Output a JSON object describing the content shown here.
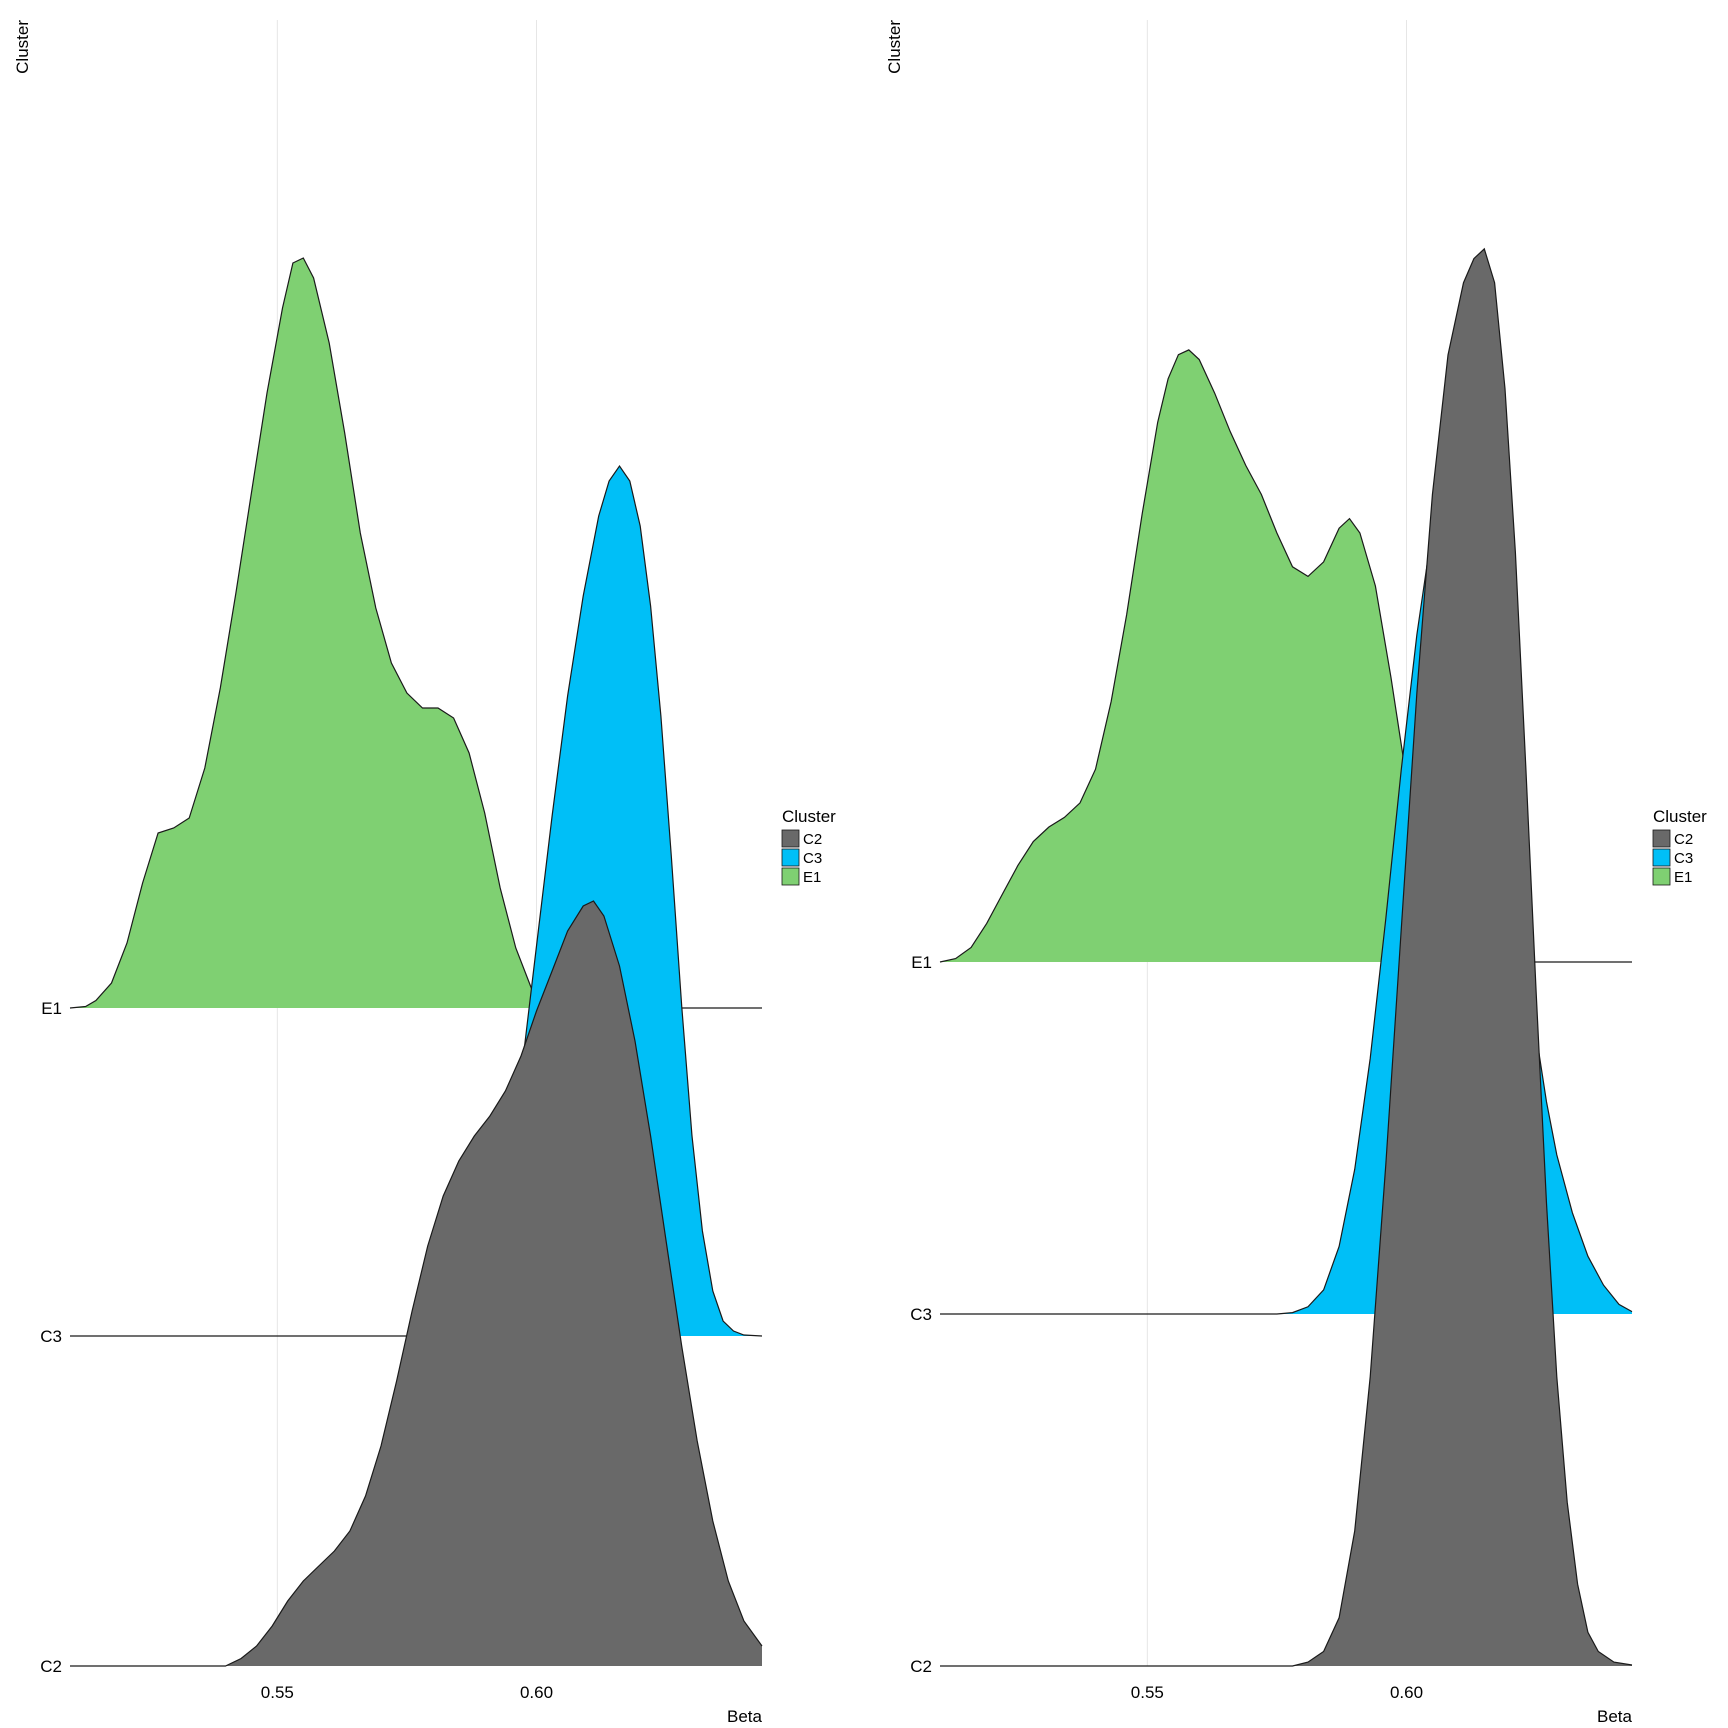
{
  "colors": {
    "C2": "#696969",
    "C3": "#00BFF7",
    "E1": "#7FD072",
    "outline": "#1a1a1a",
    "grid": "#e6e6e6"
  },
  "chart_data": [
    {
      "type": "area",
      "subtype": "ridgeline-density",
      "xlabel": "Beta",
      "ylabel": "Cluster",
      "xlim": [
        0.51,
        0.6435
      ],
      "xticks": [
        0.55,
        0.6
      ],
      "xtick_labels": [
        "0.55",
        "0.60"
      ],
      "grid": "vertical major lines at x ticks",
      "categories": [
        "C2",
        "C3",
        "E1"
      ],
      "legend": {
        "title": "Cluster",
        "position": "right",
        "entries": [
          "C2",
          "C3",
          "E1"
        ]
      },
      "series": [
        {
          "name": "E1",
          "points": [
            [
              0.51,
              0
            ],
            [
              0.513,
              0.3
            ],
            [
              0.515,
              1.5
            ],
            [
              0.518,
              5
            ],
            [
              0.521,
              13
            ],
            [
              0.524,
              25
            ],
            [
              0.527,
              35
            ],
            [
              0.53,
              36
            ],
            [
              0.533,
              38
            ],
            [
              0.536,
              48
            ],
            [
              0.539,
              64
            ],
            [
              0.542,
              83
            ],
            [
              0.545,
              103
            ],
            [
              0.548,
              123
            ],
            [
              0.551,
              140
            ],
            [
              0.553,
              149
            ],
            [
              0.555,
              150
            ],
            [
              0.557,
              146
            ],
            [
              0.56,
              133
            ],
            [
              0.563,
              115
            ],
            [
              0.566,
              95
            ],
            [
              0.569,
              80
            ],
            [
              0.572,
              69
            ],
            [
              0.575,
              63
            ],
            [
              0.578,
              60
            ],
            [
              0.581,
              60
            ],
            [
              0.584,
              58
            ],
            [
              0.587,
              51
            ],
            [
              0.59,
              39
            ],
            [
              0.593,
              24
            ],
            [
              0.596,
              12
            ],
            [
              0.599,
              4
            ],
            [
              0.602,
              1
            ],
            [
              0.605,
              0.2
            ],
            [
              0.608,
              0
            ],
            [
              0.6435,
              0
            ]
          ]
        },
        {
          "name": "C3",
          "points": [
            [
              0.51,
              0
            ],
            [
              0.575,
              0
            ],
            [
              0.58,
              0.2
            ],
            [
              0.585,
              1.5
            ],
            [
              0.588,
              5
            ],
            [
              0.591,
              14
            ],
            [
              0.594,
              30
            ],
            [
              0.597,
              52
            ],
            [
              0.6,
              78
            ],
            [
              0.603,
              104
            ],
            [
              0.606,
              128
            ],
            [
              0.609,
              148
            ],
            [
              0.612,
              164
            ],
            [
              0.614,
              171
            ],
            [
              0.616,
              174
            ],
            [
              0.618,
              171
            ],
            [
              0.62,
              162
            ],
            [
              0.622,
              146
            ],
            [
              0.624,
              124
            ],
            [
              0.626,
              96
            ],
            [
              0.628,
              66
            ],
            [
              0.63,
              40
            ],
            [
              0.632,
              21
            ],
            [
              0.634,
              9
            ],
            [
              0.636,
              3
            ],
            [
              0.638,
              1
            ],
            [
              0.64,
              0.2
            ],
            [
              0.6435,
              0
            ]
          ]
        },
        {
          "name": "C2",
          "points": [
            [
              0.51,
              0
            ],
            [
              0.54,
              0
            ],
            [
              0.543,
              1.5
            ],
            [
              0.546,
              4
            ],
            [
              0.549,
              8
            ],
            [
              0.552,
              13
            ],
            [
              0.555,
              17
            ],
            [
              0.558,
              20
            ],
            [
              0.561,
              23
            ],
            [
              0.564,
              27
            ],
            [
              0.567,
              34
            ],
            [
              0.57,
              44
            ],
            [
              0.573,
              57
            ],
            [
              0.576,
              71
            ],
            [
              0.579,
              84
            ],
            [
              0.582,
              94
            ],
            [
              0.585,
              101
            ],
            [
              0.588,
              106
            ],
            [
              0.591,
              110
            ],
            [
              0.594,
              115
            ],
            [
              0.597,
              122
            ],
            [
              0.6,
              131
            ],
            [
              0.603,
              139
            ],
            [
              0.606,
              147
            ],
            [
              0.609,
              152
            ],
            [
              0.611,
              153
            ],
            [
              0.613,
              150
            ],
            [
              0.616,
              140
            ],
            [
              0.619,
              125
            ],
            [
              0.622,
              106
            ],
            [
              0.625,
              85
            ],
            [
              0.628,
              64
            ],
            [
              0.631,
              45
            ],
            [
              0.634,
              29
            ],
            [
              0.637,
              17
            ],
            [
              0.64,
              9
            ],
            [
              0.6435,
              4
            ]
          ]
        }
      ]
    },
    {
      "type": "area",
      "subtype": "ridgeline-density",
      "xlabel": "Beta",
      "ylabel": "Cluster",
      "xlim": [
        0.51,
        0.6435
      ],
      "xticks": [
        0.55,
        0.6
      ],
      "xtick_labels": [
        "0.55",
        "0.60"
      ],
      "grid": "vertical major lines at x ticks",
      "categories": [
        "C2",
        "C3",
        "E1"
      ],
      "legend": {
        "title": "Cluster",
        "position": "right",
        "entries": [
          "C2",
          "C3",
          "E1"
        ]
      },
      "series": [
        {
          "name": "E1",
          "points": [
            [
              0.51,
              0
            ],
            [
              0.513,
              0.7
            ],
            [
              0.516,
              3
            ],
            [
              0.519,
              8
            ],
            [
              0.522,
              14
            ],
            [
              0.525,
              20
            ],
            [
              0.528,
              25
            ],
            [
              0.531,
              28
            ],
            [
              0.534,
              30
            ],
            [
              0.537,
              33
            ],
            [
              0.54,
              40
            ],
            [
              0.543,
              54
            ],
            [
              0.546,
              72
            ],
            [
              0.549,
              93
            ],
            [
              0.552,
              112
            ],
            [
              0.554,
              121
            ],
            [
              0.556,
              126
            ],
            [
              0.558,
              127
            ],
            [
              0.56,
              125
            ],
            [
              0.563,
              118
            ],
            [
              0.566,
              110
            ],
            [
              0.569,
              103
            ],
            [
              0.572,
              97
            ],
            [
              0.575,
              89
            ],
            [
              0.578,
              82
            ],
            [
              0.581,
              80
            ],
            [
              0.584,
              83
            ],
            [
              0.587,
              90
            ],
            [
              0.589,
              92
            ],
            [
              0.591,
              89
            ],
            [
              0.594,
              78
            ],
            [
              0.597,
              59
            ],
            [
              0.6,
              38
            ],
            [
              0.603,
              20
            ],
            [
              0.606,
              8
            ],
            [
              0.609,
              2
            ],
            [
              0.612,
              0.3
            ],
            [
              0.615,
              0
            ],
            [
              0.6435,
              0
            ]
          ]
        },
        {
          "name": "C3",
          "points": [
            [
              0.51,
              0
            ],
            [
              0.575,
              0
            ],
            [
              0.578,
              0.3
            ],
            [
              0.581,
              1.5
            ],
            [
              0.584,
              5
            ],
            [
              0.587,
              14
            ],
            [
              0.59,
              30
            ],
            [
              0.593,
              53
            ],
            [
              0.596,
              82
            ],
            [
              0.599,
              113
            ],
            [
              0.602,
              141
            ],
            [
              0.605,
              163
            ],
            [
              0.607,
              174
            ],
            [
              0.609,
              178
            ],
            [
              0.611,
              175
            ],
            [
              0.613,
              166
            ],
            [
              0.615,
              152
            ],
            [
              0.617,
              134
            ],
            [
              0.619,
              114
            ],
            [
              0.621,
              93
            ],
            [
              0.623,
              74
            ],
            [
              0.625,
              58
            ],
            [
              0.627,
              44
            ],
            [
              0.629,
              33
            ],
            [
              0.632,
              21
            ],
            [
              0.635,
              12
            ],
            [
              0.638,
              6
            ],
            [
              0.641,
              2
            ],
            [
              0.6435,
              0.5
            ]
          ]
        },
        {
          "name": "C2",
          "points": [
            [
              0.51,
              0
            ],
            [
              0.578,
              0
            ],
            [
              0.581,
              0.8
            ],
            [
              0.584,
              3
            ],
            [
              0.587,
              10
            ],
            [
              0.59,
              28
            ],
            [
              0.593,
              60
            ],
            [
              0.596,
              104
            ],
            [
              0.599,
              153
            ],
            [
              0.602,
              202
            ],
            [
              0.605,
              243
            ],
            [
              0.608,
              272
            ],
            [
              0.611,
              287
            ],
            [
              0.613,
              292
            ],
            [
              0.615,
              294
            ],
            [
              0.617,
              287
            ],
            [
              0.619,
              265
            ],
            [
              0.621,
              231
            ],
            [
              0.623,
              187
            ],
            [
              0.625,
              140
            ],
            [
              0.627,
              96
            ],
            [
              0.629,
              60
            ],
            [
              0.631,
              34
            ],
            [
              0.633,
              17
            ],
            [
              0.635,
              7
            ],
            [
              0.637,
              3
            ],
            [
              0.64,
              0.8
            ],
            [
              0.6435,
              0.2
            ]
          ]
        }
      ]
    }
  ]
}
